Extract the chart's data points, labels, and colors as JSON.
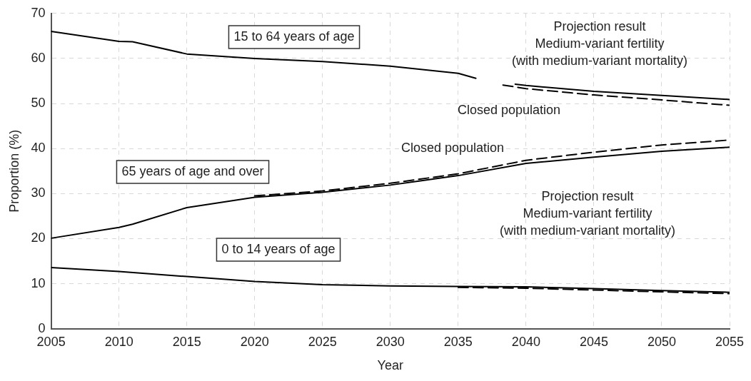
{
  "chart_data": {
    "type": "line",
    "xlabel": "Year",
    "ylabel": "Proportion (%)",
    "xlim": [
      2005,
      2055
    ],
    "ylim": [
      0,
      70
    ],
    "xticks": [
      2005,
      2010,
      2015,
      2020,
      2025,
      2030,
      2035,
      2040,
      2045,
      2050,
      2055
    ],
    "yticks": [
      0,
      10,
      20,
      30,
      40,
      50,
      60,
      70
    ],
    "grid": true,
    "legend": false,
    "marker": "none",
    "series": [
      {
        "color": "#000000",
        "line_style": "solid",
        "x": [
          2005,
          2010,
          2011,
          2015,
          2020,
          2025,
          2030,
          2035,
          2036.3,
          2037.5,
          2039.2,
          2040,
          2045,
          2050,
          2055
        ],
        "values": [
          66.0,
          63.8,
          63.7,
          61.0,
          60.0,
          59.3,
          58.3,
          56.7,
          55.6,
          null,
          54.3,
          54.0,
          52.7,
          51.8,
          50.9
        ]
      },
      {
        "color": "#000000",
        "line_style": "dashed",
        "x": [
          2038.3,
          2040,
          2045,
          2050,
          2055
        ],
        "values": [
          54.1,
          53.3,
          51.9,
          50.8,
          49.6
        ]
      },
      {
        "color": "#000000",
        "line_style": "solid",
        "x": [
          2005,
          2010,
          2011,
          2015,
          2020,
          2025,
          2030,
          2035,
          2040,
          2045,
          2050,
          2055
        ],
        "values": [
          20.1,
          22.5,
          23.2,
          26.9,
          29.2,
          30.3,
          31.9,
          34.0,
          36.7,
          38.1,
          39.4,
          40.3
        ]
      },
      {
        "color": "#000000",
        "line_style": "dashed",
        "x": [
          2020,
          2025,
          2030,
          2035,
          2040,
          2045,
          2050,
          2055
        ],
        "values": [
          29.5,
          30.6,
          32.3,
          34.4,
          37.4,
          39.2,
          40.8,
          41.9
        ]
      },
      {
        "color": "#000000",
        "line_style": "solid",
        "x": [
          2005,
          2010,
          2015,
          2020,
          2025,
          2030,
          2035,
          2040,
          2045,
          2050,
          2055
        ],
        "values": [
          13.6,
          12.7,
          11.6,
          10.5,
          9.8,
          9.5,
          9.4,
          9.3,
          8.9,
          8.5,
          8.1
        ]
      },
      {
        "color": "#000000",
        "line_style": "dashed",
        "x": [
          2035,
          2040,
          2045,
          2050,
          2055
        ],
        "values": [
          9.2,
          9.0,
          8.6,
          8.2,
          7.8
        ]
      }
    ],
    "annotations": [
      "15 to 64 years of age",
      "Projection result\nMedium-variant fertility\n(with medium-variant mortality)",
      "Closed population",
      "Closed population",
      "65 years of age and over",
      "0 to 14 years of age",
      "Projection result\nMedium-variant fertility\n(with medium-variant mortality)"
    ]
  }
}
